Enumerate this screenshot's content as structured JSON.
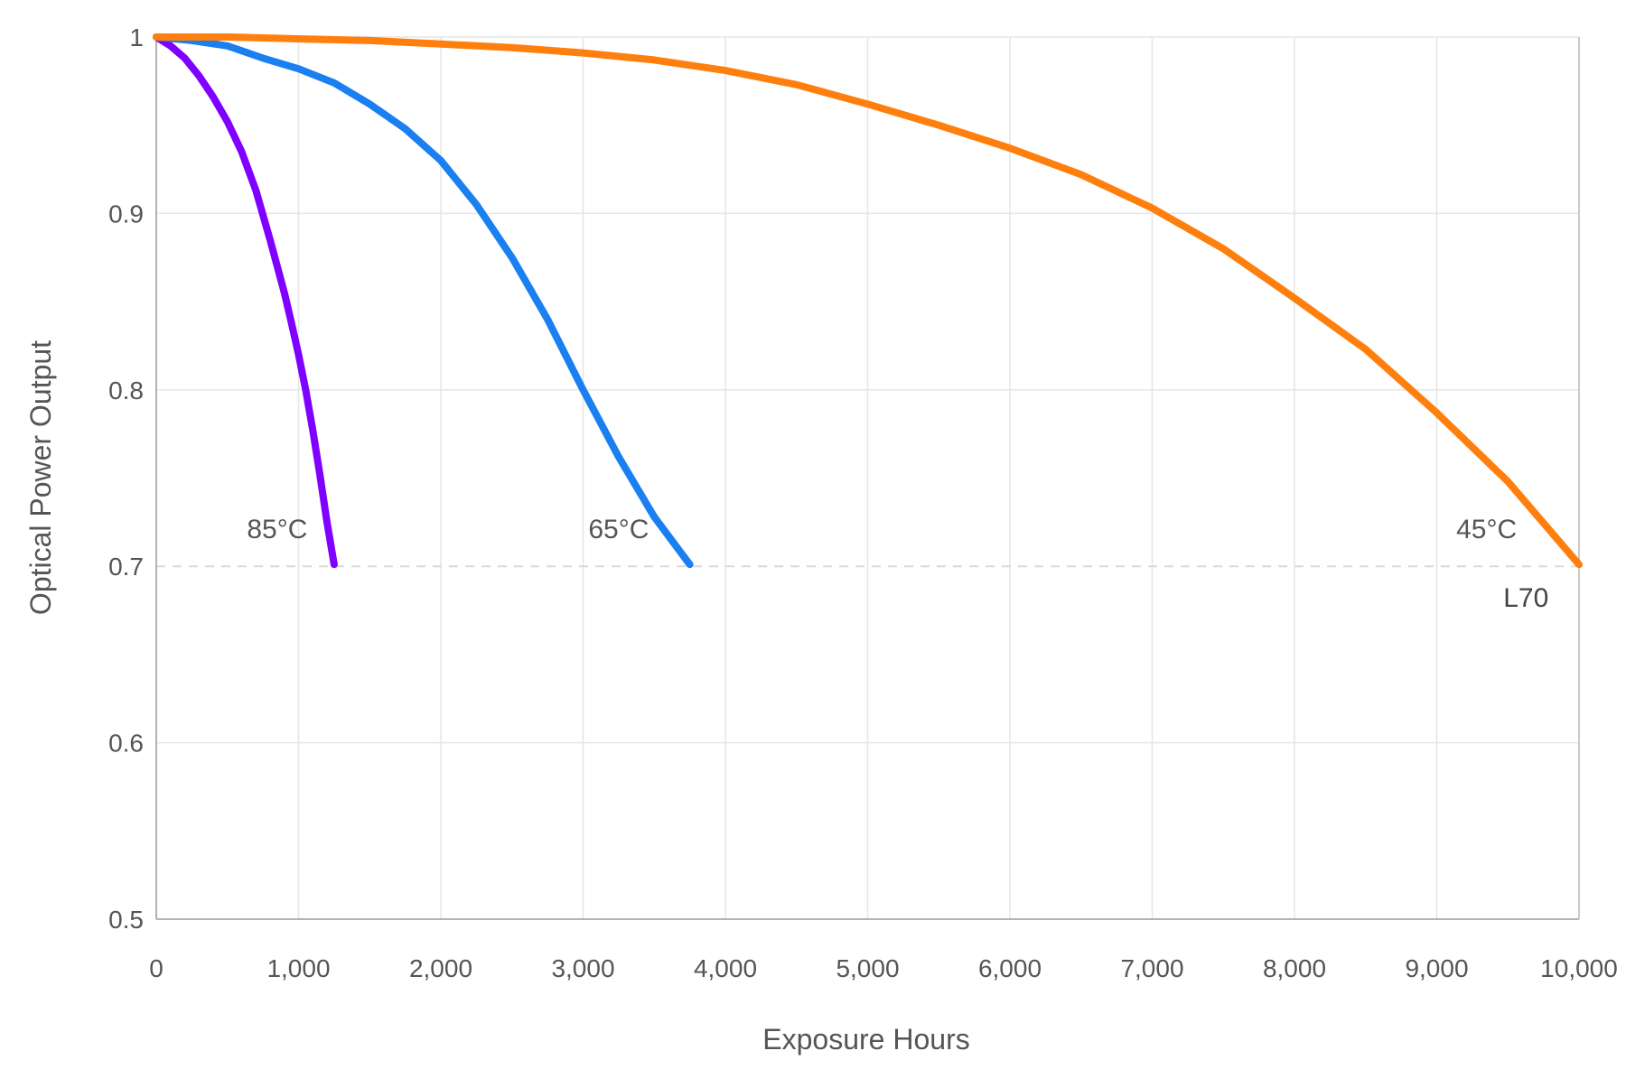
{
  "chart_data": {
    "type": "line",
    "title": "",
    "xlabel": "Exposure Hours",
    "ylabel": "Optical Power Output",
    "xlim": [
      0,
      10000
    ],
    "ylim": [
      0.5,
      1.0
    ],
    "grid": true,
    "x_ticks": [
      0,
      1000,
      2000,
      3000,
      4000,
      5000,
      6000,
      7000,
      8000,
      9000,
      10000
    ],
    "x_tick_labels": [
      "0",
      "1,000",
      "2,000",
      "3,000",
      "4,000",
      "5,000",
      "6,000",
      "7,000",
      "8,000",
      "9,000",
      "10,000"
    ],
    "y_ticks": [
      0.5,
      0.6,
      0.7,
      0.8,
      0.9,
      1.0
    ],
    "y_tick_labels": [
      "0.5",
      "0.6",
      "0.7",
      "0.8",
      "0.9",
      "1"
    ],
    "reference_line": {
      "y": 0.7,
      "label": "L70",
      "color": "#d9d9d9"
    },
    "series": [
      {
        "name": "85°C",
        "label": "85°C",
        "color": "#7f00ff",
        "x": [
          0,
          100,
          200,
          300,
          400,
          500,
          600,
          700,
          800,
          900,
          950,
          1000,
          1050,
          1100,
          1150,
          1200,
          1250
        ],
        "y": [
          1.0,
          0.995,
          0.988,
          0.978,
          0.966,
          0.952,
          0.935,
          0.913,
          0.885,
          0.855,
          0.838,
          0.82,
          0.8,
          0.777,
          0.752,
          0.725,
          0.701
        ]
      },
      {
        "name": "65°C",
        "label": "65°C",
        "color": "#1a7ff0",
        "x": [
          0,
          250,
          500,
          750,
          1000,
          1250,
          1500,
          1750,
          2000,
          2250,
          2500,
          2750,
          3000,
          3250,
          3500,
          3750
        ],
        "y": [
          1.0,
          0.998,
          0.995,
          0.988,
          0.982,
          0.974,
          0.962,
          0.948,
          0.93,
          0.905,
          0.875,
          0.84,
          0.8,
          0.762,
          0.728,
          0.701
        ]
      },
      {
        "name": "45°C",
        "label": "45°C",
        "color": "#ff7f0e",
        "x": [
          0,
          500,
          1000,
          1500,
          2000,
          2500,
          3000,
          3500,
          4000,
          4500,
          5000,
          5500,
          6000,
          6500,
          7000,
          7500,
          8000,
          8500,
          9000,
          9500,
          10000
        ],
        "y": [
          1.0,
          1.0,
          0.999,
          0.998,
          0.996,
          0.994,
          0.991,
          0.987,
          0.981,
          0.973,
          0.962,
          0.95,
          0.937,
          0.922,
          0.903,
          0.88,
          0.852,
          0.823,
          0.787,
          0.748,
          0.701
        ]
      }
    ],
    "series_label_positions": [
      {
        "series": "85°C",
        "x": 850,
        "y": 0.72
      },
      {
        "series": "65°C",
        "x": 3250,
        "y": 0.72
      },
      {
        "series": "45°C",
        "x": 9350,
        "y": 0.72
      }
    ]
  }
}
